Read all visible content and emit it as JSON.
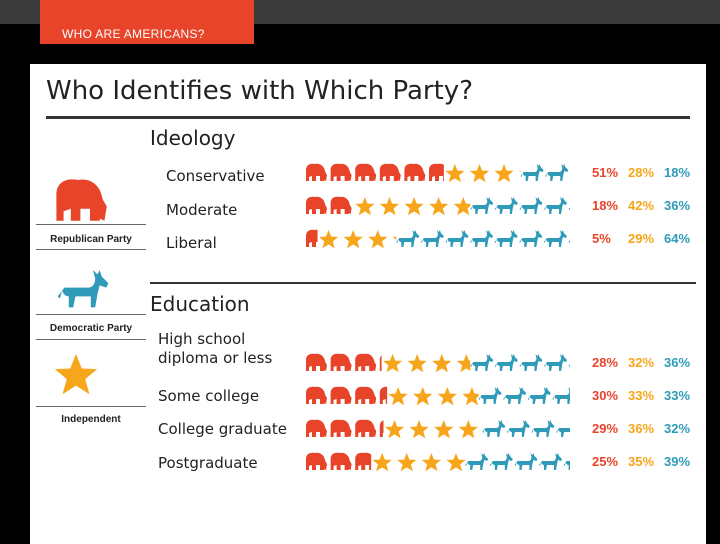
{
  "header": {
    "tab_label": "WHO ARE AMERICANS?"
  },
  "card": {
    "title": "Who Identifies with Which Party?",
    "legend": [
      "Republican Party",
      "Democratic Party",
      "Independent"
    ]
  },
  "colors": {
    "republican": "#e8442a",
    "independent": "#f7a51a",
    "democrat": "#2f9bb8"
  },
  "chart_data": [
    {
      "type": "bar",
      "title": "Ideology",
      "categories": [
        "Conservative",
        "Moderate",
        "Liberal"
      ],
      "series": [
        {
          "name": "Republican Party",
          "values": [
            51,
            18,
            5
          ]
        },
        {
          "name": "Independent",
          "values": [
            28,
            42,
            29
          ]
        },
        {
          "name": "Democratic Party",
          "values": [
            18,
            36,
            64
          ]
        }
      ],
      "labels": [
        [
          "51%",
          "28%",
          "18%"
        ],
        [
          "18%",
          "42%",
          "36%"
        ],
        [
          "5%",
          "29%",
          "64%"
        ]
      ]
    },
    {
      "type": "bar",
      "title": "Education",
      "categories": [
        "High school\ndiploma or less",
        "Some college",
        "College graduate",
        "Postgraduate"
      ],
      "series": [
        {
          "name": "Republican Party",
          "values": [
            28,
            30,
            29,
            25
          ]
        },
        {
          "name": "Independent",
          "values": [
            32,
            33,
            36,
            35
          ]
        },
        {
          "name": "Democratic Party",
          "values": [
            36,
            33,
            32,
            39
          ]
        }
      ],
      "labels": [
        [
          "28%",
          "32%",
          "36%"
        ],
        [
          "30%",
          "33%",
          "33%"
        ],
        [
          "29%",
          "36%",
          "32%"
        ],
        [
          "25%",
          "35%",
          "39%"
        ]
      ]
    }
  ]
}
